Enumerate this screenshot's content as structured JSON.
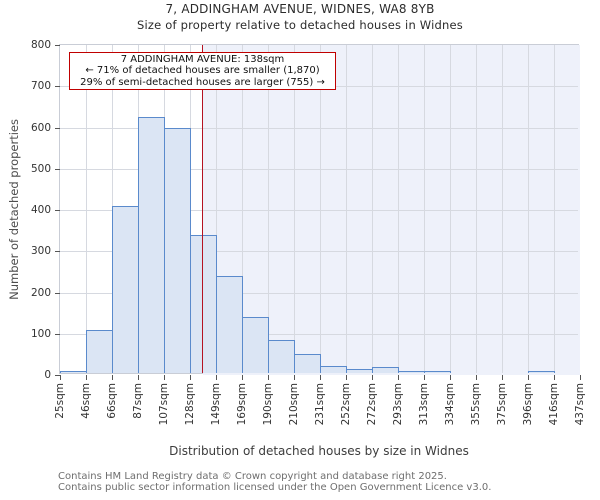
{
  "chart_data": {
    "type": "bar",
    "title": "7, ADDINGHAM AVENUE, WIDNES, WA8 8YB",
    "subtitle": "Size of property relative to detached houses in Widnes",
    "xlabel": "Distribution of detached houses by size in Widnes",
    "ylabel": "Number of detached properties",
    "categories": [
      "25sqm",
      "46sqm",
      "66sqm",
      "87sqm",
      "107sqm",
      "128sqm",
      "149sqm",
      "169sqm",
      "190sqm",
      "210sqm",
      "231sqm",
      "252sqm",
      "272sqm",
      "293sqm",
      "313sqm",
      "334sqm",
      "355sqm",
      "375sqm",
      "396sqm",
      "416sqm",
      "437sqm"
    ],
    "bin_edges": [
      25,
      46,
      66,
      87,
      107,
      128,
      149,
      169,
      190,
      210,
      231,
      252,
      272,
      293,
      313,
      334,
      355,
      375,
      396,
      416,
      437
    ],
    "values": [
      4,
      105,
      405,
      620,
      595,
      335,
      235,
      135,
      80,
      45,
      18,
      10,
      14,
      3,
      3,
      0,
      0,
      0,
      4,
      0
    ],
    "x_range": [
      25,
      437
    ],
    "ylim": [
      0,
      800
    ],
    "ytick_step": 100,
    "grid": true,
    "legend": "none",
    "marker": {
      "value_sqm": 138
    },
    "annotation_lines": [
      "7 ADDINGHAM AVENUE: 138sqm",
      "← 71% of detached houses are smaller (1,870)",
      "29% of semi-detached houses are larger (755) →"
    ],
    "colors": {
      "bar_fill": "#dbe5f4",
      "bar_edge": "#5a8acc",
      "marker_line": "#b51322",
      "annotation_border": "#c00000",
      "highlight_region": "#eef1fa",
      "grid_line": "#d6d9e0",
      "spine": "#c9cdd6"
    }
  },
  "footer": {
    "line1": "Contains HM Land Registry data © Crown copyright and database right 2025.",
    "line2": "Contains public sector information licensed under the Open Government Licence v3.0."
  }
}
